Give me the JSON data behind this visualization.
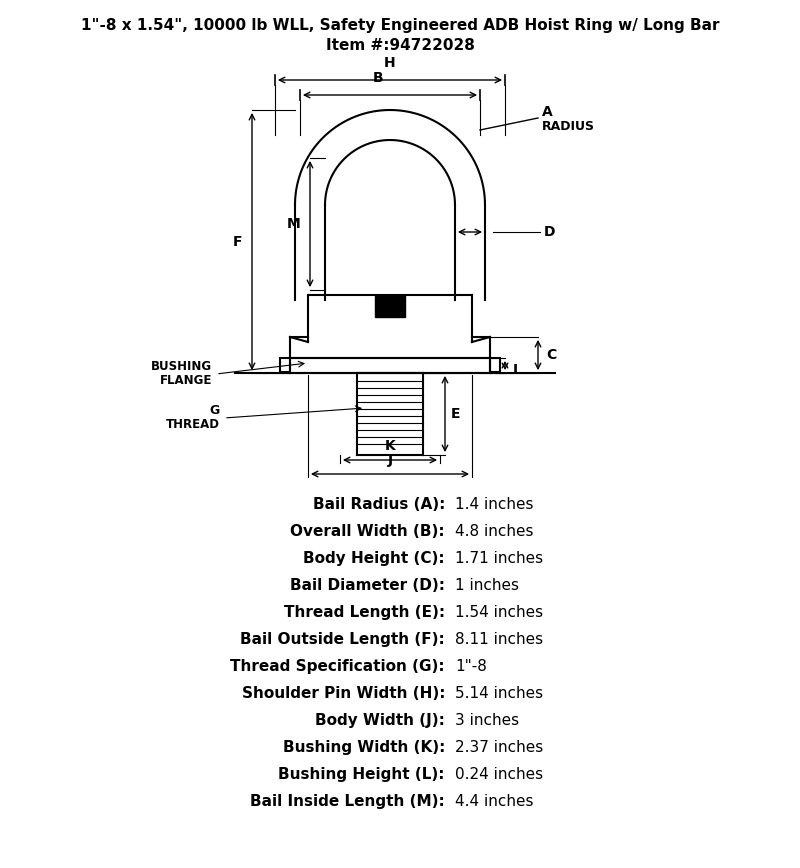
{
  "title_line1": "1\"-8 x 1.54\", 10000 lb WLL, Safety Engineered ADB Hoist Ring w/ Long Bar",
  "title_line2": "Item #:94722028",
  "specs": [
    [
      "Bail Radius (A):",
      "1.4 inches"
    ],
    [
      "Overall Width (B):",
      "4.8 inches"
    ],
    [
      "Body Height (C):",
      "1.71 inches"
    ],
    [
      "Bail Diameter (D):",
      "1 inches"
    ],
    [
      "Thread Length (E):",
      "1.54 inches"
    ],
    [
      "Bail Outside Length (F):",
      "8.11 inches"
    ],
    [
      "Thread Specification (G):",
      "1\"-8"
    ],
    [
      "Shoulder Pin Width (H):",
      "5.14 inches"
    ],
    [
      "Body Width (J):",
      "3 inches"
    ],
    [
      "Bushing Width (K):",
      "2.37 inches"
    ],
    [
      "Bushing Height (L):",
      "0.24 inches"
    ],
    [
      "Bail Inside Length (M):",
      "4.4 inches"
    ]
  ],
  "bg_color": "#ffffff",
  "line_color": "#000000"
}
